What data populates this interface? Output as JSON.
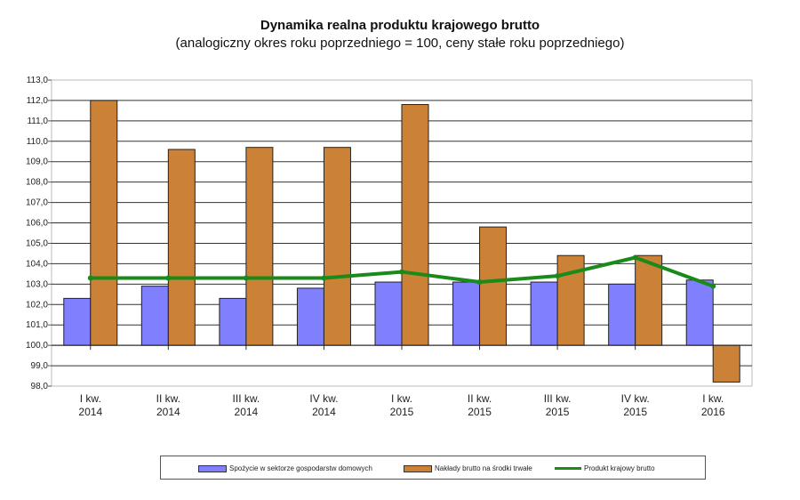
{
  "chart_data": {
    "type": "bar",
    "title": "Dynamika realna produktu krajowego brutto",
    "subtitle": "(analogiczny okres roku poprzedniego = 100, ceny stałe roku poprzedniego)",
    "categories": [
      [
        "I kw.",
        "2014"
      ],
      [
        "II kw.",
        "2014"
      ],
      [
        "III kw.",
        "2014"
      ],
      [
        "IV kw.",
        "2014"
      ],
      [
        "I kw.",
        "2015"
      ],
      [
        "II kw.",
        "2015"
      ],
      [
        "III kw.",
        "2015"
      ],
      [
        "IV kw.",
        "2015"
      ],
      [
        "I kw.",
        "2016"
      ]
    ],
    "ylim": [
      98,
      113
    ],
    "baseline": 100,
    "yticks": [
      "98,0",
      "99,0",
      "100,0",
      "101,0",
      "102,0",
      "103,0",
      "104,0",
      "105,0",
      "106,0",
      "107,0",
      "108,0",
      "109,0",
      "110,0",
      "111,0",
      "112,0",
      "113,0"
    ],
    "grid": true,
    "legend_position": "bottom",
    "series": [
      {
        "name": "Spożycie w sektorze gospodarstw domowych",
        "kind": "bar",
        "color": "#8080ff",
        "values": [
          102.3,
          102.9,
          102.3,
          102.8,
          103.1,
          103.1,
          103.1,
          103.0,
          103.2
        ]
      },
      {
        "name": "Nakłady brutto na środki trwałe",
        "kind": "bar",
        "color": "#cc8236",
        "values": [
          112.0,
          109.6,
          109.7,
          109.7,
          111.8,
          105.8,
          104.4,
          104.4,
          98.2
        ]
      },
      {
        "name": "Produkt krajowy brutto",
        "kind": "line",
        "color": "#1a8a1a",
        "values": [
          103.3,
          103.3,
          103.3,
          103.3,
          103.6,
          103.1,
          103.4,
          104.3,
          102.9
        ]
      }
    ]
  }
}
